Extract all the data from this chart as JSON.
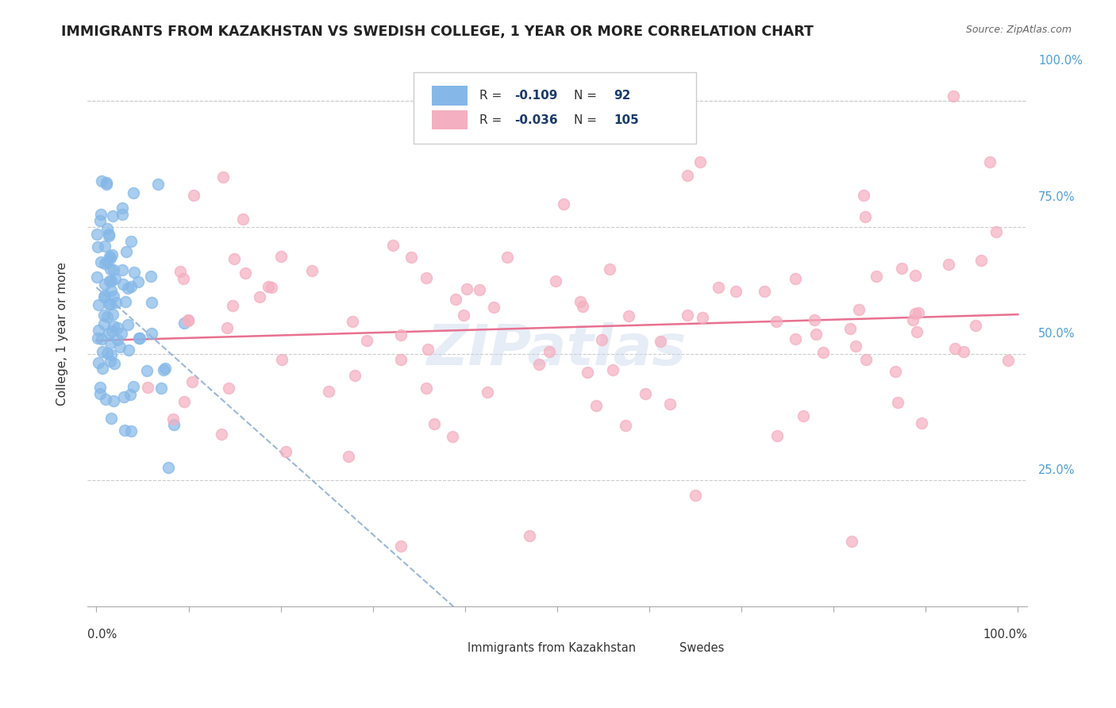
{
  "title": "IMMIGRANTS FROM KAZAKHSTAN VS SWEDISH COLLEGE, 1 YEAR OR MORE CORRELATION CHART",
  "source_text": "Source: ZipAtlas.com",
  "ylabel": "College, 1 year or more",
  "legend_label1": "Immigrants from Kazakhstan",
  "legend_label2": "Swedes",
  "color_kaz": "#85b8e8",
  "color_swe": "#f4afc0",
  "trendline_kaz_color": "#90afd4",
  "trendline_swe_color": "#e87090",
  "watermark": "ZIPatlas",
  "R_kaz": -0.109,
  "N_kaz": 92,
  "R_swe": -0.036,
  "N_swe": 105,
  "legend_text_color": "#1a3a6b",
  "legend_value_color": "#1a3a6b",
  "ytick_color": "#4d9fd6",
  "bg_color": "#ffffff",
  "grid_color": "#cccccc",
  "spine_color": "#aaaaaa"
}
